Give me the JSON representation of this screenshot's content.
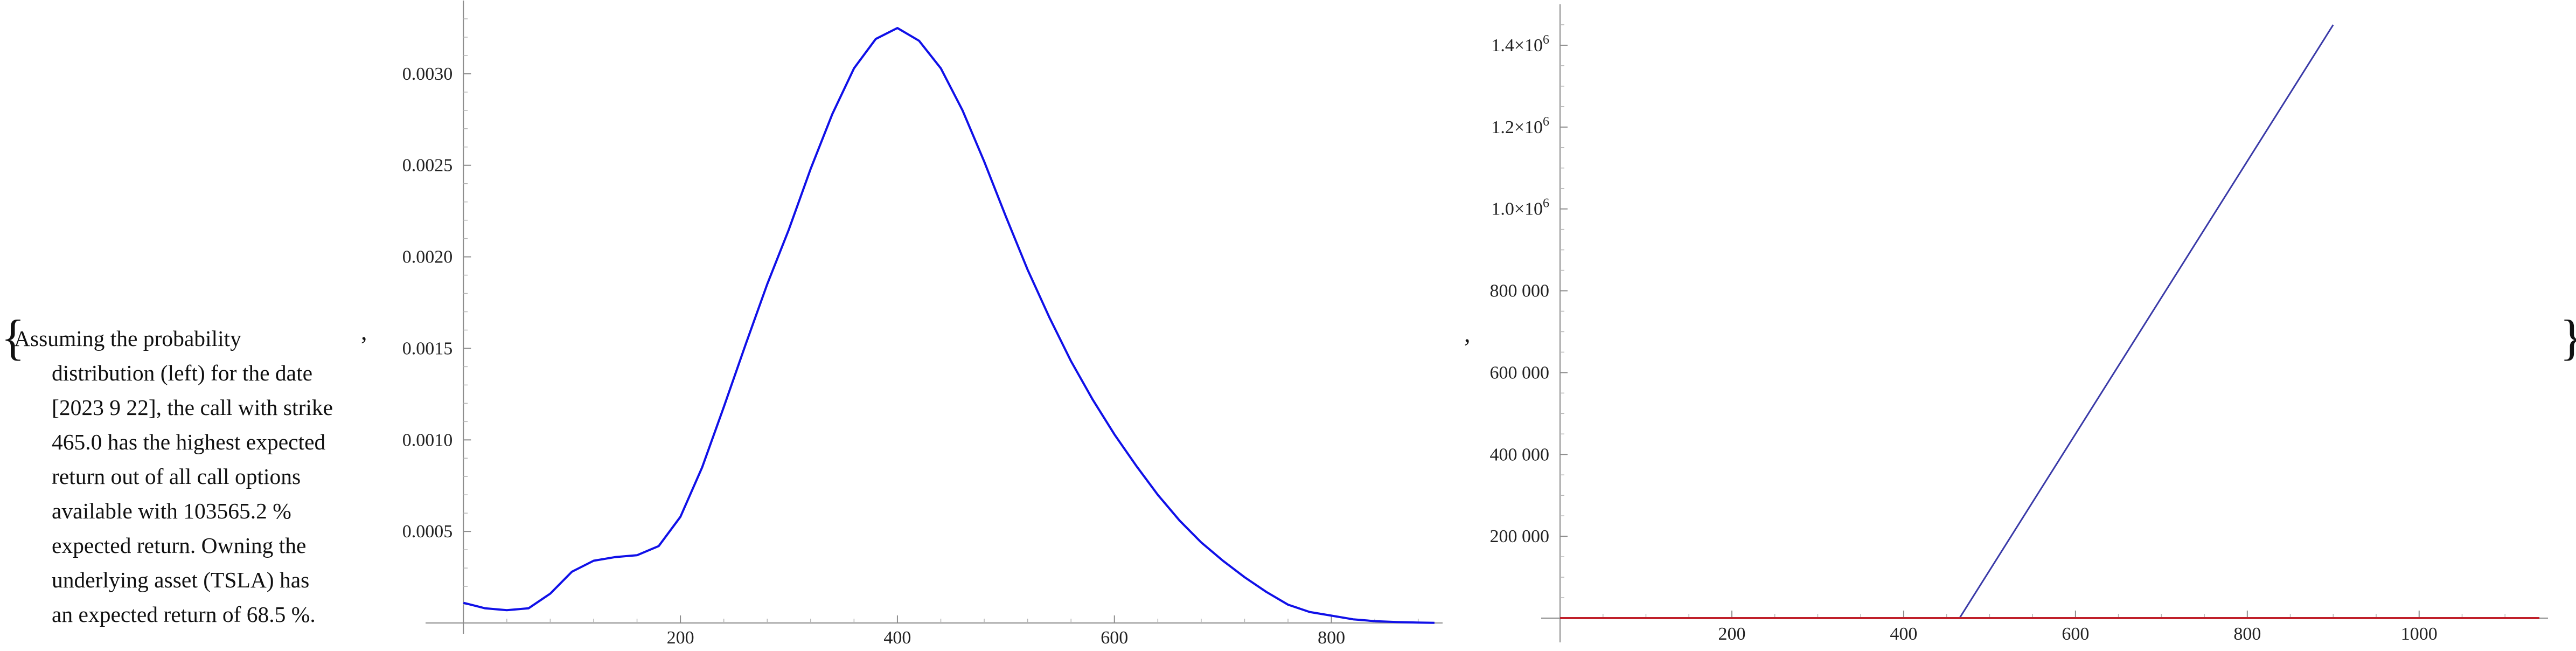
{
  "caption_lines": [
    "Assuming the probability",
    "distribution (left) for the date",
    "[2023 9 22], the call with strike",
    "465.0 has the highest expected",
    "return out of all call options",
    "available with 103565.2 %",
    "expected return. Owning the",
    "underlying asset (TSLA) has",
    "an expected return of 68.5 %."
  ],
  "list_open": "{",
  "list_close": "}",
  "separator": ",",
  "chart_data": [
    {
      "type": "line",
      "title": "",
      "xlabel": "",
      "ylabel": "",
      "xlim": [
        -20,
        900
      ],
      "ylim": [
        0,
        0.0034
      ],
      "x_ticks": [
        200,
        400,
        600,
        800
      ],
      "y_ticks": [
        0.0005,
        0.001,
        0.0015,
        0.002,
        0.0025,
        0.003
      ],
      "y_tick_labels": [
        "0.0005",
        "0.0010",
        "0.0015",
        "0.0020",
        "0.0025",
        "0.0030"
      ],
      "color": "#1010e8",
      "series": [
        {
          "x": [
            0,
            20,
            40,
            60,
            80,
            100,
            120,
            140,
            160,
            180,
            200,
            220,
            240,
            260,
            280,
            300,
            320,
            340,
            360,
            380,
            400,
            420,
            440,
            460,
            480,
            500,
            520,
            540,
            560,
            580,
            600,
            620,
            640,
            660,
            680,
            700,
            720,
            740,
            760,
            780,
            800,
            820,
            840,
            860,
            880,
            895
          ],
          "y": [
            0.00011,
            8e-05,
            7e-05,
            8e-05,
            0.00016,
            0.00028,
            0.00034,
            0.00036,
            0.00037,
            0.00042,
            0.00058,
            0.00085,
            0.00118,
            0.00152,
            0.00185,
            0.00215,
            0.00248,
            0.00278,
            0.00303,
            0.00319,
            0.00325,
            0.00318,
            0.00303,
            0.0028,
            0.00252,
            0.00222,
            0.00193,
            0.00167,
            0.00143,
            0.00122,
            0.00103,
            0.00086,
            0.0007,
            0.00056,
            0.00044,
            0.00034,
            0.00025,
            0.00017,
            0.0001,
            6e-05,
            4e-05,
            2e-05,
            1e-05,
            5e-06,
            2e-06,
            1e-06
          ]
        }
      ]
    },
    {
      "type": "line",
      "title": "",
      "xlabel": "",
      "ylabel": "",
      "xlim": [
        0,
        1150
      ],
      "ylim": [
        0,
        1500000
      ],
      "x_ticks": [
        200,
        400,
        600,
        800,
        1000
      ],
      "y_ticks": [
        200000,
        400000,
        600000,
        800000,
        1000000,
        1200000,
        1400000
      ],
      "y_tick_labels": [
        "200 000",
        "400 000",
        "600 000",
        "800 000",
        "1.0×10",
        "1.2×10",
        "1.4×10"
      ],
      "y_tick_exponents": [
        "",
        "",
        "",
        "",
        "6",
        "6",
        "6"
      ],
      "series": [
        {
          "color": "#3a3aa8",
          "x": [
            0,
            465,
            900
          ],
          "y": [
            0,
            0,
            1450000
          ]
        },
        {
          "color": "#c0202a",
          "x": [
            0,
            1140
          ],
          "y": [
            0,
            0
          ]
        }
      ]
    }
  ]
}
